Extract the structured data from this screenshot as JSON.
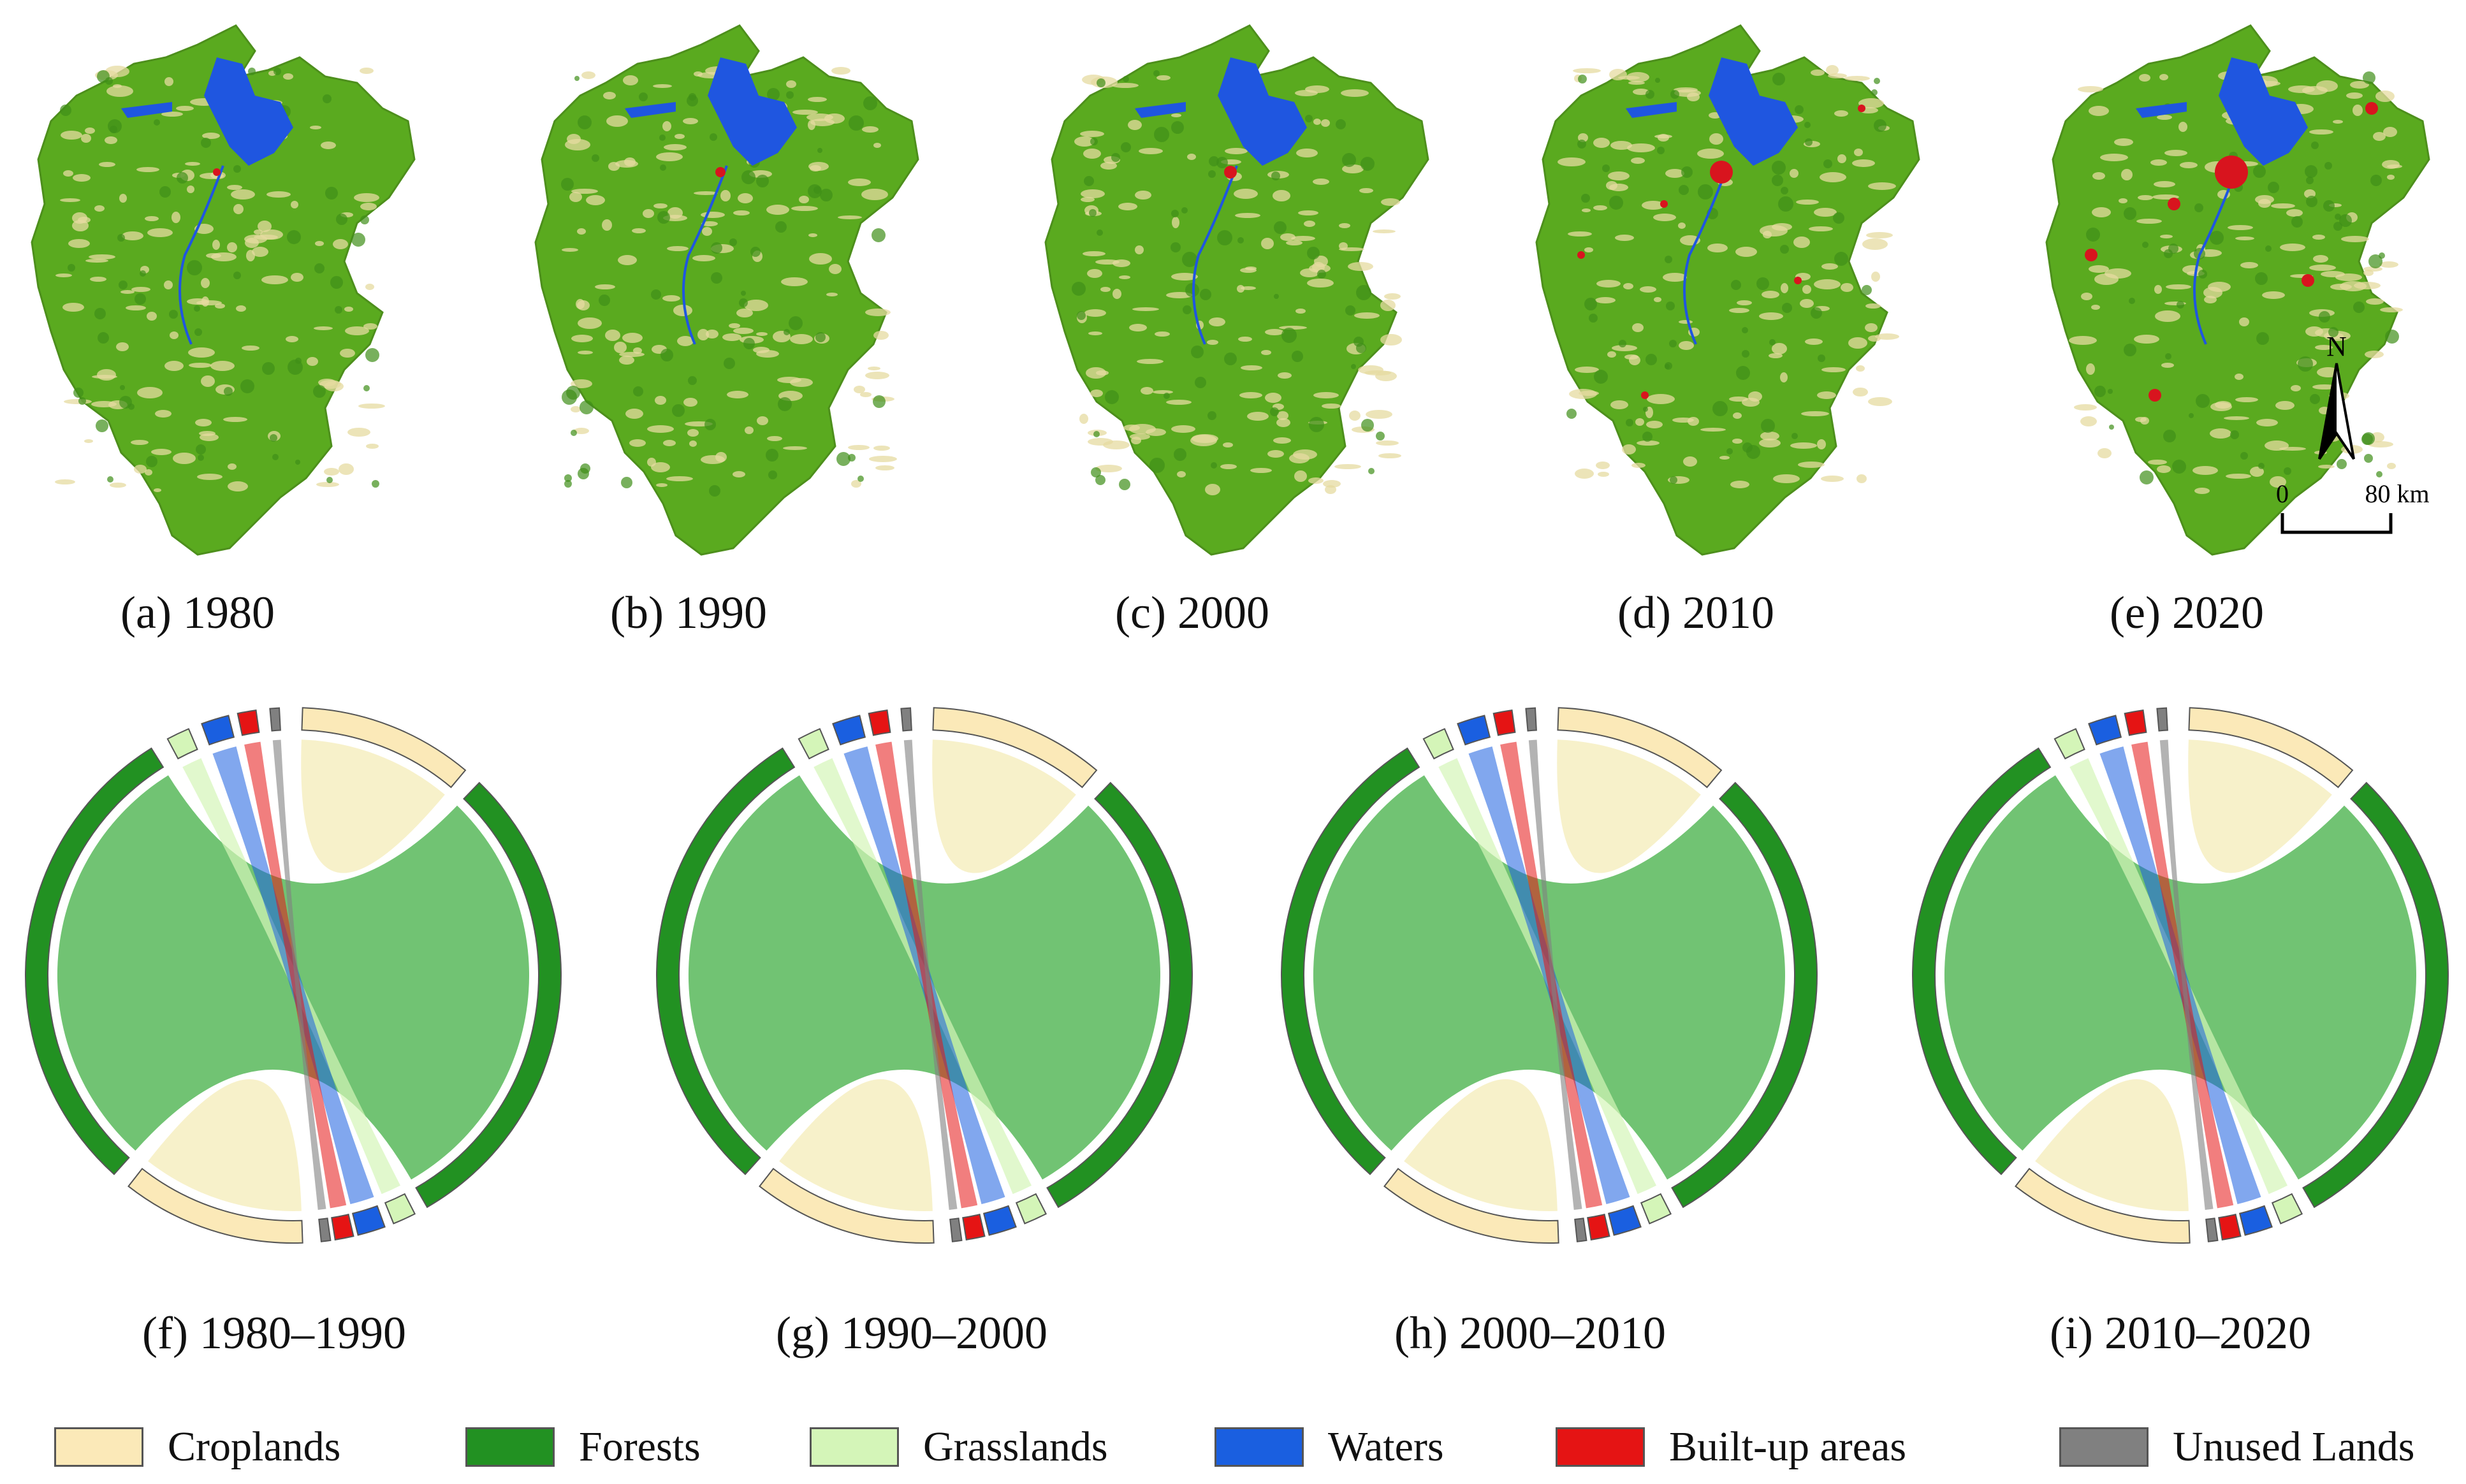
{
  "map_captions": [
    "(a) 1980",
    "(b) 1990",
    "(c) 2000",
    "(d) 2010",
    "(e) 2020"
  ],
  "chord_captions": [
    "(f) 1980–1990",
    "(g) 1990–2000",
    "(h) 2000–2010",
    "(i) 2010–2020"
  ],
  "scale_bar": {
    "north_label": "N",
    "start_label": "0",
    "end_label": "80 km"
  },
  "legend": [
    {
      "label": "Croplands",
      "color": "#fbe9b8"
    },
    {
      "label": "Forests",
      "color": "#229122"
    },
    {
      "label": "Grasslands",
      "color": "#d4f5b8"
    },
    {
      "label": "Waters",
      "color": "#1a5fe0"
    },
    {
      "label": "Built-up areas",
      "color": "#e51414"
    },
    {
      "label": "Unused Lands",
      "color": "#808080"
    }
  ],
  "colors": {
    "forest_map": "#5aaa1f",
    "forest_dark": "#3f8e18",
    "cropland_map": "#e6dba0",
    "water_map": "#1f56e0",
    "built_map": "#d8141e",
    "forest_chord": "#229122",
    "forest_ribbon": "#58b85a",
    "cropland_ribbon": "#f6efc4"
  }
}
